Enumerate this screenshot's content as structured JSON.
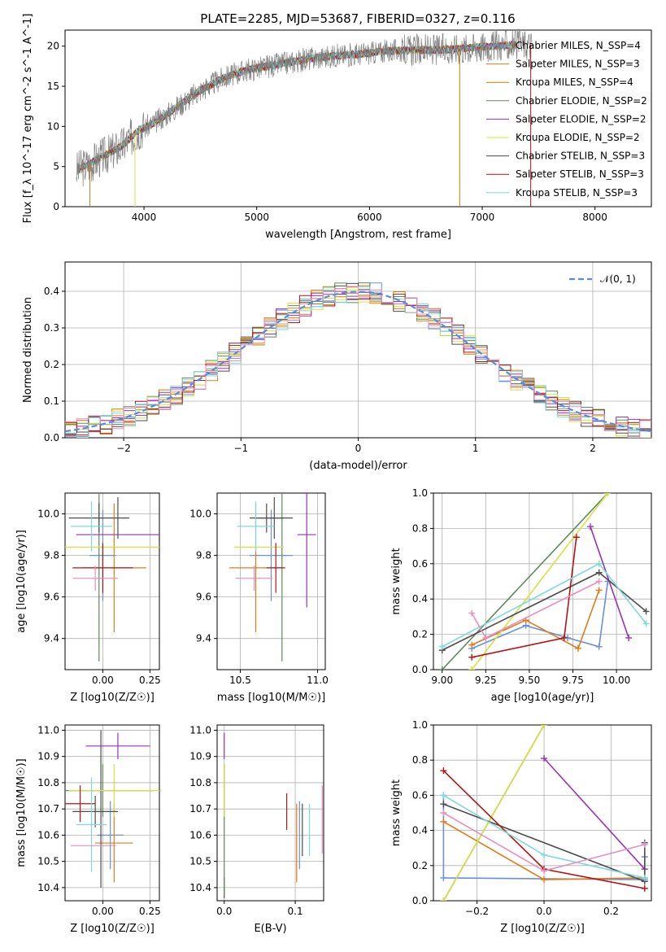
{
  "figure_title": "PLATE=2285, MJD=53687, FIBERID=0327, z=0.116",
  "colors": {
    "grid": "#b0b0b0",
    "runs": [
      "#6a8fdb",
      "#e07b1c",
      "#c08000",
      "#5b8a5b",
      "#9b30b8",
      "#d8e040",
      "#4d4d4d",
      "#b31414",
      "#7fd8dc",
      "#e88fc0"
    ]
  },
  "chart_data": [
    {
      "id": "spectrum",
      "type": "line",
      "title": "PLATE=2285, MJD=53687, FIBERID=0327, z=0.116",
      "xlabel": "wavelength [Angstrom, rest frame]",
      "ylabel": "Flux [f_λ 10^-17 erg cm^-2 s^-1 A^-1]",
      "xlim": [
        3300,
        8500
      ],
      "ylim": [
        0,
        22
      ],
      "xticks": [
        4000,
        5000,
        6000,
        7000,
        8000
      ],
      "yticks": [
        0,
        5,
        10,
        15,
        20
      ],
      "grid": false,
      "legend_position": "top-right",
      "data_color": "#808080",
      "spectrum_x": [
        3400,
        3600,
        3800,
        3950,
        4100,
        4300,
        4500,
        4700,
        4900,
        5100,
        5300,
        5500,
        5700,
        5900,
        6100,
        6300,
        6500,
        6700,
        6900,
        7100,
        7300
      ],
      "spectrum_y": [
        4.5,
        6.0,
        7.5,
        9.5,
        10.5,
        12.5,
        14.5,
        16.0,
        17.0,
        17.5,
        18.0,
        18.5,
        18.8,
        19.0,
        19.3,
        19.5,
        19.5,
        19.6,
        19.8,
        20.0,
        20.2
      ],
      "spikes_x": [
        3520,
        3920,
        6800,
        7430
      ],
      "series": [
        {
          "name": "Chabrier MILES, N_SSP=4",
          "color": "#6a8fdb"
        },
        {
          "name": "Salpeter MILES, N_SSP=3",
          "color": "#e07b1c"
        },
        {
          "name": "Kroupa MILES, N_SSP=4",
          "color": "#c08000"
        },
        {
          "name": "Chabrier ELODIE, N_SSP=2",
          "color": "#5b8a5b"
        },
        {
          "name": "Salpeter ELODIE, N_SSP=2",
          "color": "#9b30b8"
        },
        {
          "name": "Kroupa ELODIE, N_SSP=2",
          "color": "#d8e040"
        },
        {
          "name": "Chabrier STELIB, N_SSP=3",
          "color": "#4d4d4d"
        },
        {
          "name": "Salpeter STELIB, N_SSP=3",
          "color": "#b31414"
        },
        {
          "name": "Kroupa STELIB, N_SSP=3",
          "color": "#7fd8dc"
        }
      ]
    },
    {
      "id": "residual_hist",
      "type": "line",
      "xlabel": "(data-model)/error",
      "ylabel": "Normed distribution",
      "xlim": [
        -2.5,
        2.5
      ],
      "ylim": [
        0,
        0.48
      ],
      "xticks": [
        -2,
        -1,
        0,
        1,
        2
      ],
      "yticks": [
        0.0,
        0.1,
        0.2,
        0.3,
        0.4
      ],
      "grid": true,
      "legend_position": "top-right",
      "legend": "𝒩(0, 1)",
      "gauss_color": "#5b8ad8",
      "bin_width": 0.1
    },
    {
      "id": "age_vs_Z",
      "type": "scatter",
      "xlabel": "Z [log10(Z/Z☉)]",
      "ylabel": "age  [log10(age/yr)]",
      "xlim": [
        -0.2,
        0.3
      ],
      "ylim": [
        9.25,
        10.1
      ],
      "xticks": [
        0.0,
        0.25
      ],
      "yticks": [
        9.4,
        9.6,
        9.8,
        10.0
      ],
      "grid": true,
      "points": [
        {
          "x": 0.0,
          "y": 9.8,
          "dx": 0.07,
          "dy": 0.22,
          "color": "#6a8fdb"
        },
        {
          "x": 0.06,
          "y": 9.74,
          "dx": 0.17,
          "dy": 0.31,
          "color": "#e07b1c"
        },
        {
          "x": 0.08,
          "y": 9.98,
          "dx": 0.0,
          "dy": 0.1,
          "color": "#4d4d4d"
        },
        {
          "x": -0.02,
          "y": 9.84,
          "dx": 0.0,
          "dy": 0.55,
          "color": "#5b8a5b"
        },
        {
          "x": 0.08,
          "y": 9.9,
          "dx": 0.22,
          "dy": 0.0,
          "color": "#9b30b8"
        },
        {
          "x": 0.05,
          "y": 9.84,
          "dx": 0.25,
          "dy": 0.0,
          "color": "#d8e040"
        },
        {
          "x": -0.02,
          "y": 9.98,
          "dx": 0.16,
          "dy": 0.07,
          "color": "#4d4d4d"
        },
        {
          "x": 0.0,
          "y": 9.74,
          "dx": 0.16,
          "dy": 0.12,
          "color": "#b31414"
        },
        {
          "x": -0.06,
          "y": 9.94,
          "dx": 0.11,
          "dy": 0.12,
          "color": "#7fd8dc"
        },
        {
          "x": -0.04,
          "y": 9.69,
          "dx": 0.12,
          "dy": 0.06,
          "color": "#e88fc0"
        }
      ]
    },
    {
      "id": "age_vs_mass",
      "type": "scatter",
      "xlabel": "mass [log10(M/M☉)]",
      "ylabel": "",
      "xlim": [
        10.35,
        11.05
      ],
      "ylim": [
        9.25,
        10.1
      ],
      "xticks": [
        10.5,
        11.0
      ],
      "yticks": [
        9.4,
        9.6,
        9.8,
        10.0
      ],
      "grid": true,
      "points": [
        {
          "x": 10.7,
          "y": 9.8,
          "dx": 0.14,
          "dy": 0.22,
          "color": "#6a8fdb"
        },
        {
          "x": 10.6,
          "y": 9.74,
          "dx": 0.17,
          "dy": 0.31,
          "color": "#e07b1c"
        },
        {
          "x": 10.72,
          "y": 9.98,
          "dx": 0.12,
          "dy": 0.1,
          "color": "#4d4d4d"
        },
        {
          "x": 10.77,
          "y": 9.84,
          "dx": 0.0,
          "dy": 0.55,
          "color": "#5b8a5b"
        },
        {
          "x": 10.93,
          "y": 9.9,
          "dx": 0.06,
          "dy": 0.35,
          "color": "#9b30b8"
        },
        {
          "x": 10.62,
          "y": 9.84,
          "dx": 0.16,
          "dy": 0.0,
          "color": "#d8e040"
        },
        {
          "x": 10.67,
          "y": 9.98,
          "dx": 0.11,
          "dy": 0.07,
          "color": "#4d4d4d"
        },
        {
          "x": 10.73,
          "y": 9.74,
          "dx": 0.06,
          "dy": 0.12,
          "color": "#b31414"
        },
        {
          "x": 10.6,
          "y": 9.94,
          "dx": 0.12,
          "dy": 0.12,
          "color": "#7fd8dc"
        },
        {
          "x": 10.59,
          "y": 9.69,
          "dx": 0.12,
          "dy": 0.06,
          "color": "#e88fc0"
        }
      ]
    },
    {
      "id": "weight_vs_age",
      "type": "line",
      "xlabel": "age  [log10(age/yr)]",
      "ylabel": "mass weight",
      "xlim": [
        8.95,
        10.2
      ],
      "ylim": [
        0,
        1.0
      ],
      "xticks": [
        9.0,
        9.25,
        9.5,
        9.75,
        10.0
      ],
      "yticks": [
        0.0,
        0.2,
        0.4,
        0.6,
        0.8,
        1.0
      ],
      "grid": true,
      "series": [
        {
          "color": "#6a8fdb",
          "x": [
            9.17,
            9.48,
            9.72,
            9.9,
            9.95
          ],
          "y": [
            0.12,
            0.25,
            0.18,
            0.13,
            0.5
          ]
        },
        {
          "color": "#e07b1c",
          "x": [
            9.17,
            9.48,
            9.78,
            9.9
          ],
          "y": [
            0.14,
            0.28,
            0.12,
            0.45
          ]
        },
        {
          "color": "#5b8a5b",
          "x": [
            9.0,
            9.95
          ],
          "y": [
            0.0,
            1.0
          ]
        },
        {
          "color": "#9b30b8",
          "x": [
            9.85,
            10.07
          ],
          "y": [
            0.81,
            0.18
          ]
        },
        {
          "color": "#d8e040",
          "x": [
            9.17,
            9.95
          ],
          "y": [
            0.0,
            1.0
          ]
        },
        {
          "color": "#4d4d4d",
          "x": [
            9.0,
            9.9,
            10.17
          ],
          "y": [
            0.11,
            0.55,
            0.33
          ]
        },
        {
          "color": "#b31414",
          "x": [
            9.17,
            9.7,
            9.77
          ],
          "y": [
            0.07,
            0.18,
            0.75
          ]
        },
        {
          "color": "#7fd8dc",
          "x": [
            9.0,
            9.9,
            10.17
          ],
          "y": [
            0.13,
            0.6,
            0.26
          ]
        },
        {
          "color": "#e88fc0",
          "x": [
            9.17,
            9.25,
            9.9
          ],
          "y": [
            0.32,
            0.18,
            0.5
          ]
        }
      ]
    },
    {
      "id": "mass_vs_Z",
      "type": "scatter",
      "xlabel": "Z [log10(Z/Z☉)]",
      "ylabel": "mass [log10(M/M☉)]",
      "xlim": [
        -0.2,
        0.3
      ],
      "ylim": [
        10.35,
        11.02
      ],
      "xticks": [
        0.0,
        0.25
      ],
      "yticks": [
        10.4,
        10.5,
        10.6,
        10.7,
        10.8,
        10.9,
        11.0
      ],
      "grid": true,
      "points": [
        {
          "x": 0.04,
          "y": 10.6,
          "dx": 0.07,
          "dy": 0.13,
          "color": "#6a8fdb"
        },
        {
          "x": 0.06,
          "y": 10.57,
          "dx": 0.1,
          "dy": 0.15,
          "color": "#e07b1c"
        },
        {
          "x": -0.01,
          "y": 10.7,
          "dx": 0.0,
          "dy": 0.3,
          "color": "#4d4d4d"
        },
        {
          "x": 0.0,
          "y": 10.77,
          "dx": 0.27,
          "dy": 0.1,
          "color": "#5b8a5b"
        },
        {
          "x": 0.08,
          "y": 10.94,
          "dx": 0.17,
          "dy": 0.05,
          "color": "#9b30b8"
        },
        {
          "x": 0.06,
          "y": 10.77,
          "dx": 0.24,
          "dy": 0.1,
          "color": "#d8e040"
        },
        {
          "x": -0.04,
          "y": 10.69,
          "dx": 0.12,
          "dy": 0.06,
          "color": "#4d4d4d"
        },
        {
          "x": -0.12,
          "y": 10.72,
          "dx": 0.08,
          "dy": 0.07,
          "color": "#b31414"
        },
        {
          "x": -0.06,
          "y": 10.64,
          "dx": 0.08,
          "dy": 0.18,
          "color": "#7fd8dc"
        },
        {
          "x": -0.05,
          "y": 10.56,
          "dx": 0.12,
          "dy": 0.0,
          "color": "#e88fc0"
        }
      ]
    },
    {
      "id": "mass_vs_ebv",
      "type": "scatter",
      "xlabel": "E(B-V)",
      "ylabel": "",
      "xlim": [
        -0.01,
        0.14
      ],
      "ylim": [
        10.35,
        11.02
      ],
      "xticks": [
        0.0,
        0.1
      ],
      "yticks": [
        10.4,
        10.5,
        10.6,
        10.7,
        10.8,
        10.9,
        11.0
      ],
      "grid": true,
      "points": [
        {
          "x": 0.106,
          "y": 10.6,
          "dx": 0,
          "dy": 0.13,
          "color": "#6a8fdb"
        },
        {
          "x": 0.102,
          "y": 10.57,
          "dx": 0,
          "dy": 0.15,
          "color": "#e07b1c"
        },
        {
          "x": 0.0,
          "y": 10.4,
          "dx": 0,
          "dy": 0.04,
          "color": "#4d4d4d"
        },
        {
          "x": 0.0,
          "y": 10.62,
          "dx": 0,
          "dy": 0.25,
          "color": "#5b8a5b"
        },
        {
          "x": 0.0,
          "y": 10.94,
          "dx": 0,
          "dy": 0.05,
          "color": "#9b30b8"
        },
        {
          "x": 0.0,
          "y": 10.77,
          "dx": 0,
          "dy": 0.1,
          "color": "#d8e040"
        },
        {
          "x": 0.11,
          "y": 10.62,
          "dx": 0,
          "dy": 0.1,
          "color": "#4d4d4d"
        },
        {
          "x": 0.088,
          "y": 10.69,
          "dx": 0,
          "dy": 0.07,
          "color": "#b31414"
        },
        {
          "x": 0.12,
          "y": 10.62,
          "dx": 0,
          "dy": 0.1,
          "color": "#7fd8dc"
        },
        {
          "x": 0.138,
          "y": 10.66,
          "dx": 0,
          "dy": 0.13,
          "color": "#e88fc0"
        }
      ]
    },
    {
      "id": "weight_vs_Z",
      "type": "line",
      "xlabel": "Z [log10(Z/Z☉)]",
      "ylabel": "mass weight",
      "xlim": [
        -0.33,
        0.32
      ],
      "ylim": [
        0,
        1.0
      ],
      "xticks": [
        -0.2,
        0.0,
        0.2
      ],
      "yticks": [
        0.0,
        0.2,
        0.4,
        0.6,
        0.8,
        1.0
      ],
      "grid": true,
      "series": [
        {
          "color": "#6a8fdb",
          "x": [
            -0.3,
            -0.3,
            0.3,
            0.3
          ],
          "y": [
            0.6,
            0.13,
            0.12,
            0.25
          ]
        },
        {
          "color": "#e07b1c",
          "x": [
            -0.3,
            0.0,
            0.3
          ],
          "y": [
            0.45,
            0.12,
            0.13
          ]
        },
        {
          "color": "#5b8a5b",
          "x": [
            -0.3,
            0.0
          ],
          "y": [
            0.0,
            1.0
          ]
        },
        {
          "color": "#9b30b8",
          "x": [
            0.0,
            0.3
          ],
          "y": [
            0.81,
            0.18
          ]
        },
        {
          "color": "#d8e040",
          "x": [
            -0.3,
            0.0
          ],
          "y": [
            0.0,
            1.0
          ]
        },
        {
          "color": "#4d4d4d",
          "x": [
            -0.3,
            0.3,
            0.3
          ],
          "y": [
            0.55,
            0.11,
            0.33
          ]
        },
        {
          "color": "#b31414",
          "x": [
            -0.3,
            0.0,
            0.3
          ],
          "y": [
            0.74,
            0.18,
            0.07
          ]
        },
        {
          "color": "#7fd8dc",
          "x": [
            -0.3,
            0.0,
            0.3
          ],
          "y": [
            0.6,
            0.26,
            0.13
          ]
        },
        {
          "color": "#e88fc0",
          "x": [
            -0.3,
            0.0,
            0.3
          ],
          "y": [
            0.5,
            0.17,
            0.32
          ]
        }
      ]
    }
  ]
}
